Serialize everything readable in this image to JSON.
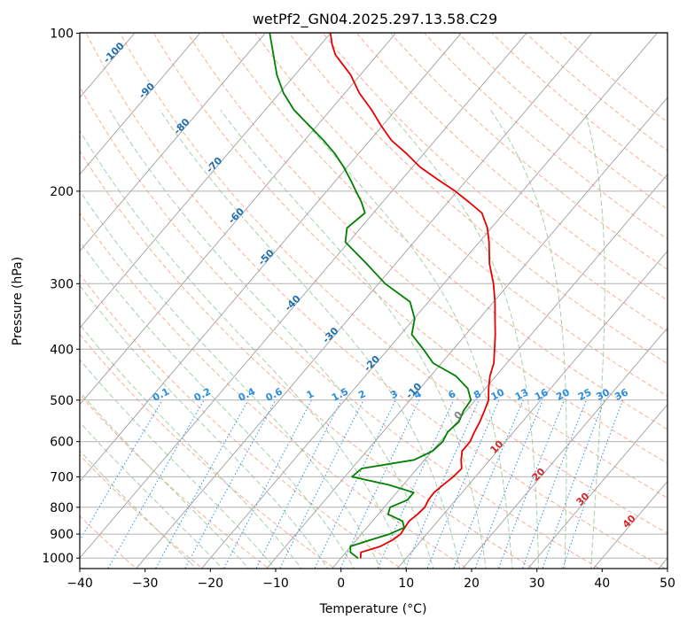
{
  "chart_data": {
    "type": "line",
    "subtype": "skew-t log-p diagram",
    "title": "wetPf2_GN04.2025.297.13.58.C29",
    "xlabel": "Temperature (°C)",
    "ylabel": "Pressure (hPa)",
    "xlim": [
      -40,
      50
    ],
    "ylim": [
      1050,
      100
    ],
    "yscale": "log",
    "grid": true,
    "x_ticks": [
      "−40",
      "−30",
      "−20",
      "−10",
      "0",
      "10",
      "20",
      "30",
      "40",
      "50"
    ],
    "y_ticks": [
      "100",
      "200",
      "300",
      "400",
      "500",
      "600",
      "700",
      "800",
      "900",
      "1000"
    ],
    "series": [
      {
        "role": "temperature",
        "color": "#e60000",
        "points": [
          [
            1000,
            3.0
          ],
          [
            975,
            2.3
          ],
          [
            950,
            4.5
          ],
          [
            925,
            5.5
          ],
          [
            900,
            6.0
          ],
          [
            875,
            5.8
          ],
          [
            850,
            5.6
          ],
          [
            825,
            6.0
          ],
          [
            800,
            6.2
          ],
          [
            775,
            5.8
          ],
          [
            750,
            5.7
          ],
          [
            725,
            6.1
          ],
          [
            700,
            6.6
          ],
          [
            675,
            6.8
          ],
          [
            650,
            5.6
          ],
          [
            625,
            4.6
          ],
          [
            600,
            4.6
          ],
          [
            575,
            4.0
          ],
          [
            550,
            3.5
          ],
          [
            525,
            2.8
          ],
          [
            500,
            2.0
          ],
          [
            475,
            0.5
          ],
          [
            450,
            -0.9
          ],
          [
            425,
            -2.0
          ],
          [
            400,
            -3.7
          ],
          [
            375,
            -5.5
          ],
          [
            350,
            -7.6
          ],
          [
            325,
            -9.8
          ],
          [
            300,
            -12.4
          ],
          [
            275,
            -15.6
          ],
          [
            250,
            -18.5
          ],
          [
            235,
            -20.6
          ],
          [
            220,
            -23.4
          ],
          [
            210,
            -26.7
          ],
          [
            200,
            -30.3
          ],
          [
            190,
            -34.5
          ],
          [
            180,
            -38.8
          ],
          [
            170,
            -42.5
          ],
          [
            160,
            -46.7
          ],
          [
            150,
            -50.2
          ],
          [
            140,
            -53.7
          ],
          [
            130,
            -57.8
          ],
          [
            120,
            -61.5
          ],
          [
            110,
            -66.4
          ],
          [
            105,
            -68.3
          ],
          [
            100,
            -70.0
          ]
        ]
      },
      {
        "role": "dewpoint",
        "color": "#008000",
        "points": [
          [
            1000,
            2.6
          ],
          [
            975,
            0.7
          ],
          [
            950,
            -0.1
          ],
          [
            925,
            2.0
          ],
          [
            900,
            4.3
          ],
          [
            875,
            5.7
          ],
          [
            850,
            4.6
          ],
          [
            825,
            1.5
          ],
          [
            800,
            0.9
          ],
          [
            775,
            2.6
          ],
          [
            750,
            2.6
          ],
          [
            725,
            -2.3
          ],
          [
            700,
            -8.9
          ],
          [
            675,
            -8.5
          ],
          [
            650,
            -1.6
          ],
          [
            625,
            0.1
          ],
          [
            600,
            0.4
          ],
          [
            575,
            -0.1
          ],
          [
            550,
            0.3
          ],
          [
            525,
            -0.4
          ],
          [
            500,
            -0.7
          ],
          [
            475,
            -2.7
          ],
          [
            450,
            -6.1
          ],
          [
            425,
            -11.3
          ],
          [
            400,
            -14.6
          ],
          [
            375,
            -18.3
          ],
          [
            350,
            -19.9
          ],
          [
            325,
            -22.8
          ],
          [
            300,
            -29.0
          ],
          [
            275,
            -34.4
          ],
          [
            250,
            -40.5
          ],
          [
            235,
            -42.1
          ],
          [
            220,
            -41.3
          ],
          [
            210,
            -43.2
          ],
          [
            200,
            -45.5
          ],
          [
            190,
            -47.9
          ],
          [
            180,
            -50.5
          ],
          [
            170,
            -53.5
          ],
          [
            160,
            -57.1
          ],
          [
            150,
            -61.2
          ],
          [
            140,
            -65.6
          ],
          [
            130,
            -69.4
          ],
          [
            120,
            -72.8
          ],
          [
            110,
            -75.9
          ],
          [
            100,
            -79.3
          ]
        ]
      }
    ],
    "background_lines": {
      "isotherms": {
        "color": "#a0a0a0",
        "step": 10
      },
      "dry_adiabats": {
        "color": "#f5b09a",
        "style": "dashed"
      },
      "moist_adiabats": {
        "color": "#a6d0a6",
        "style": "dashed"
      },
      "mixing_ratio": {
        "color": "#2b8fe0",
        "style": "dotted",
        "labels": [
          "0.1",
          "0.2",
          "0.4",
          "0.6",
          "1",
          "1.5",
          "2",
          "3",
          "4",
          "6",
          "8",
          "10",
          "13",
          "16",
          "20",
          "25",
          "30",
          "36"
        ]
      },
      "isentrope_labels_blue": {
        "color": "#1f6fb0",
        "labels": [
          "-100",
          "-90",
          "-80",
          "-70",
          "-60",
          "-50",
          "-40",
          "-30",
          "-20",
          "-10"
        ]
      },
      "isentrope_labels_red": {
        "color": "#d62728",
        "labels": [
          "10",
          "20",
          "30",
          "40"
        ]
      },
      "isentrope_label_zero": {
        "color": "#7f7f7f",
        "label": "0"
      }
    }
  }
}
